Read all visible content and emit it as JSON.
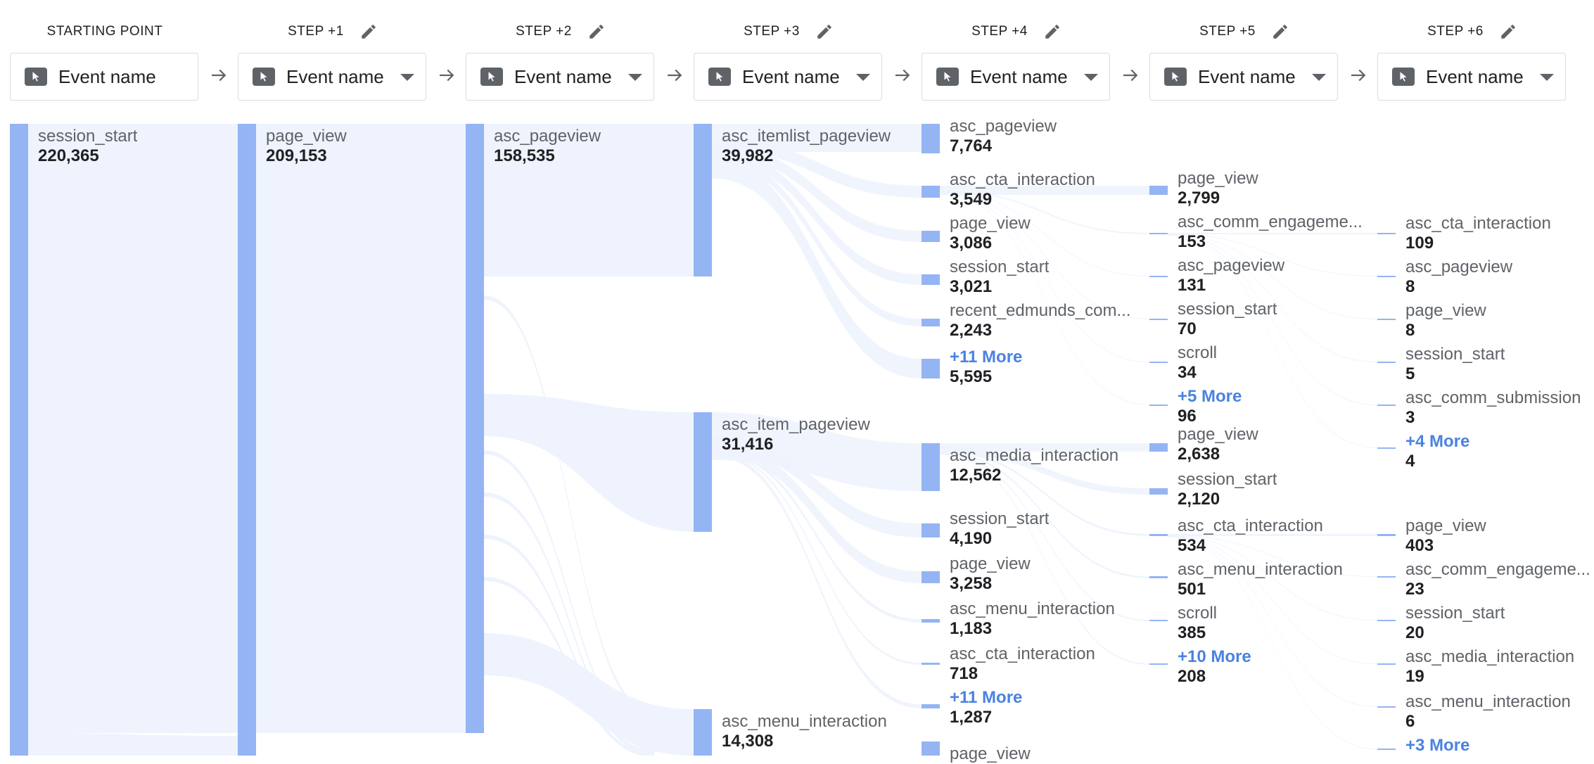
{
  "steps": [
    {
      "label": "STARTING POINT",
      "editable": false,
      "selector": "Event name",
      "dropdown": false
    },
    {
      "label": "STEP +1",
      "editable": true,
      "selector": "Event name",
      "dropdown": true
    },
    {
      "label": "STEP +2",
      "editable": true,
      "selector": "Event name",
      "dropdown": true
    },
    {
      "label": "STEP +3",
      "editable": true,
      "selector": "Event name",
      "dropdown": true
    },
    {
      "label": "STEP +4",
      "editable": true,
      "selector": "Event name",
      "dropdown": true
    },
    {
      "label": "STEP +5",
      "editable": true,
      "selector": "Event name",
      "dropdown": true
    },
    {
      "label": "STEP +6",
      "editable": true,
      "selector": "Event name",
      "dropdown": true
    }
  ],
  "colors": {
    "node": "#94b4f4",
    "link": "#eef3fd",
    "more": "#4a82e0"
  },
  "icons": {
    "edit": "pencil-icon",
    "selector": "cursor-icon",
    "arrow": "arrow-right-icon",
    "dropdown": "chevron-down-icon"
  },
  "nodes": {
    "s0": [
      {
        "name": "session_start",
        "value": "220,365"
      }
    ],
    "s1": [
      {
        "name": "page_view",
        "value": "209,153"
      }
    ],
    "s2": [
      {
        "name": "asc_pageview",
        "value": "158,535"
      }
    ],
    "s3": [
      {
        "name": "asc_itemlist_pageview",
        "value": "39,982"
      },
      {
        "name": "asc_item_pageview",
        "value": "31,416"
      },
      {
        "name": "asc_menu_interaction",
        "value": "14,308"
      }
    ],
    "s4": [
      {
        "name": "asc_pageview",
        "value": "7,764"
      },
      {
        "name": "asc_cta_interaction",
        "value": "3,549"
      },
      {
        "name": "page_view",
        "value": "3,086"
      },
      {
        "name": "session_start",
        "value": "3,021"
      },
      {
        "name": "recent_edmunds_com...",
        "value": "2,243"
      },
      {
        "name": "+11 More",
        "value": "5,595",
        "more": true
      },
      {
        "name": "asc_media_interaction",
        "value": "12,562"
      },
      {
        "name": "session_start",
        "value": "4,190"
      },
      {
        "name": "page_view",
        "value": "3,258"
      },
      {
        "name": "asc_menu_interaction",
        "value": "1,183"
      },
      {
        "name": "asc_cta_interaction",
        "value": "718"
      },
      {
        "name": "+11 More",
        "value": "1,287",
        "more": true
      },
      {
        "name": "page_view",
        "value": ""
      }
    ],
    "s5": [
      {
        "name": "page_view",
        "value": "2,799"
      },
      {
        "name": "asc_comm_engageme...",
        "value": "153"
      },
      {
        "name": "asc_pageview",
        "value": "131"
      },
      {
        "name": "session_start",
        "value": "70"
      },
      {
        "name": "scroll",
        "value": "34"
      },
      {
        "name": "+5 More",
        "value": "96",
        "more": true
      },
      {
        "name": "page_view",
        "value": "2,638"
      },
      {
        "name": "session_start",
        "value": "2,120"
      },
      {
        "name": "asc_cta_interaction",
        "value": "534"
      },
      {
        "name": "asc_menu_interaction",
        "value": "501"
      },
      {
        "name": "scroll",
        "value": "385"
      },
      {
        "name": "+10 More",
        "value": "208",
        "more": true
      }
    ],
    "s6": [
      {
        "name": "asc_cta_interaction",
        "value": "109"
      },
      {
        "name": "asc_pageview",
        "value": "8"
      },
      {
        "name": "page_view",
        "value": "8"
      },
      {
        "name": "session_start",
        "value": "5"
      },
      {
        "name": "asc_comm_submission",
        "value": "3"
      },
      {
        "name": "+4 More",
        "value": "4",
        "more": true
      },
      {
        "name": "page_view",
        "value": "403"
      },
      {
        "name": "asc_comm_engageme...",
        "value": "23"
      },
      {
        "name": "session_start",
        "value": "20"
      },
      {
        "name": "asc_media_interaction",
        "value": "19"
      },
      {
        "name": "asc_menu_interaction",
        "value": "6"
      },
      {
        "name": "+3 More",
        "value": "",
        "more": true
      }
    ]
  }
}
